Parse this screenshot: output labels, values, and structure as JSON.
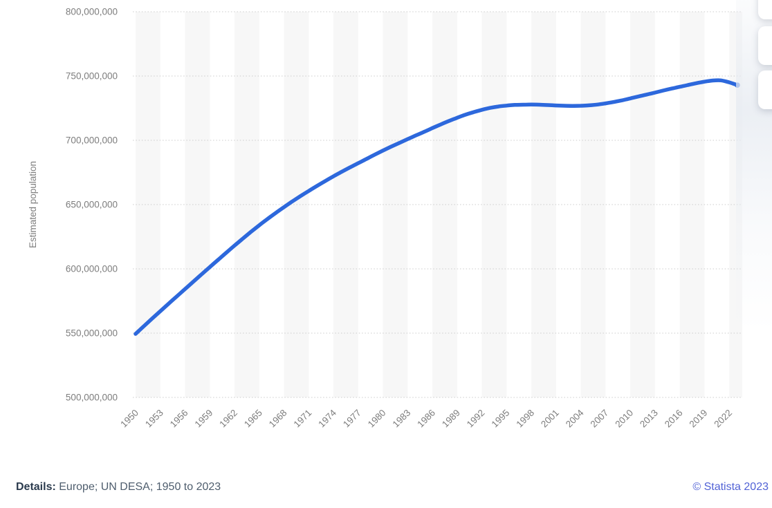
{
  "chart_data": {
    "type": "line",
    "title": "",
    "xlabel": "",
    "ylabel": "Estimated population",
    "ylim": [
      500000000,
      800000000
    ],
    "y_ticks": [
      500000000,
      550000000,
      600000000,
      650000000,
      700000000,
      750000000,
      800000000
    ],
    "x_range": [
      1950,
      2023
    ],
    "x_tick_labels": [
      "1950",
      "1953",
      "1956",
      "1959",
      "1962",
      "1965",
      "1968",
      "1971",
      "1974",
      "1977",
      "1980",
      "1983",
      "1986",
      "1989",
      "1992",
      "1995",
      "1998",
      "2001",
      "2004",
      "2007",
      "2010",
      "2013",
      "2016",
      "2019",
      "2022"
    ],
    "grid": "horizontal-dotted",
    "plot_bands": "vertical alternating light-gray bands, one per 3-year tick interval starting at 1950",
    "legend": "none",
    "series": [
      {
        "name": "Estimated population",
        "x": [
          1950,
          1951,
          1952,
          1953,
          1954,
          1955,
          1956,
          1957,
          1958,
          1959,
          1960,
          1961,
          1962,
          1963,
          1964,
          1965,
          1966,
          1967,
          1968,
          1969,
          1970,
          1971,
          1972,
          1973,
          1974,
          1975,
          1976,
          1977,
          1978,
          1979,
          1980,
          1981,
          1982,
          1983,
          1984,
          1985,
          1986,
          1987,
          1988,
          1989,
          1990,
          1991,
          1992,
          1993,
          1994,
          1995,
          1996,
          1997,
          1998,
          1999,
          2000,
          2001,
          2002,
          2003,
          2004,
          2005,
          2006,
          2007,
          2008,
          2009,
          2010,
          2011,
          2012,
          2013,
          2014,
          2015,
          2016,
          2017,
          2018,
          2019,
          2020,
          2021,
          2022,
          2023
        ],
        "values": [
          549400000,
          555400000,
          561300000,
          567100000,
          572900000,
          578600000,
          584300000,
          590000000,
          595700000,
          601400000,
          607000000,
          612600000,
          618100000,
          623500000,
          628800000,
          633900000,
          638800000,
          643500000,
          648000000,
          652400000,
          656600000,
          660600000,
          664500000,
          668300000,
          672000000,
          675500000,
          678900000,
          682200000,
          685500000,
          688800000,
          692000000,
          695100000,
          698000000,
          700900000,
          703800000,
          706600000,
          709500000,
          712300000,
          715000000,
          717500000,
          719900000,
          721900000,
          723700000,
          725200000,
          726300000,
          727000000,
          727500000,
          727700000,
          727800000,
          727700000,
          727400000,
          727100000,
          726900000,
          726800000,
          726900000,
          727200000,
          727800000,
          728700000,
          729800000,
          731100000,
          732600000,
          734100000,
          735600000,
          737100000,
          738700000,
          740200000,
          741600000,
          743000000,
          744400000,
          745600000,
          746500000,
          746600000,
          745100000,
          742900000
        ]
      }
    ]
  },
  "colors": {
    "line": "#2d68dc",
    "band": "#f7f7f7",
    "gridline": "#cbcbcb",
    "axis_text": "#7d7d7d"
  },
  "footer": {
    "details_label": "Details:",
    "details_text": " Europe; UN DESA; 1950 to 2023",
    "copyright": "© Statista 2023"
  },
  "side_toolbar": {
    "button_count": 3
  }
}
